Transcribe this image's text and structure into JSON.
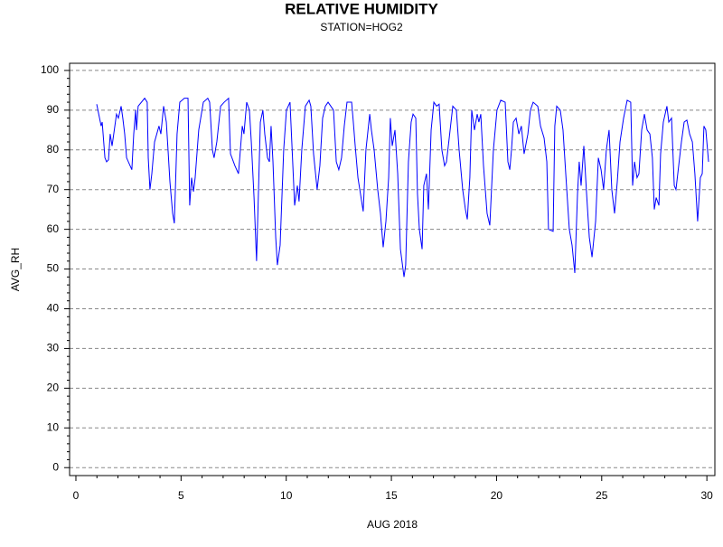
{
  "chart_data": {
    "type": "line",
    "title": "RELATIVE HUMIDITY",
    "subtitle": "STATION=HOG2",
    "x_label": "AUG 2018",
    "y_label": "AVG_RH",
    "color": "#0000ff",
    "grid": true,
    "xlim": [
      -0.3,
      30.38
    ],
    "ylim": [
      -2,
      101.8
    ],
    "xticks": [
      0,
      5,
      10,
      15,
      20,
      25,
      30
    ],
    "yticks": [
      0,
      10,
      20,
      30,
      40,
      50,
      60,
      70,
      80,
      90,
      100
    ],
    "xminorticks": [
      1,
      2,
      3,
      4,
      6,
      7,
      8,
      9,
      11,
      12,
      13,
      14,
      16,
      17,
      18,
      19,
      21,
      22,
      23,
      24,
      26,
      27,
      28,
      29
    ],
    "yminorticks": [
      2,
      4,
      6,
      8,
      12,
      14,
      16,
      18,
      22,
      24,
      26,
      28,
      32,
      34,
      36,
      38,
      42,
      44,
      46,
      48,
      52,
      54,
      56,
      58,
      62,
      64,
      66,
      68,
      72,
      74,
      76,
      78,
      82,
      84,
      86,
      88,
      92,
      94,
      96,
      98
    ],
    "x": [
      0.99,
      1.2,
      1.25,
      1.38,
      1.46,
      1.55,
      1.63,
      1.72,
      1.8,
      1.93,
      2.02,
      2.15,
      2.23,
      2.32,
      2.41,
      2.66,
      2.75,
      2.84,
      2.88,
      2.96,
      3.27,
      3.39,
      3.44,
      3.52,
      3.61,
      3.74,
      3.95,
      4.04,
      4.17,
      4.3,
      4.38,
      4.47,
      4.6,
      4.68,
      4.81,
      4.94,
      5.16,
      5.33,
      5.41,
      5.5,
      5.59,
      5.67,
      5.84,
      6.06,
      6.27,
      6.36,
      6.49,
      6.57,
      6.7,
      6.88,
      7.05,
      7.26,
      7.35,
      7.56,
      7.73,
      7.91,
      7.99,
      8.12,
      8.25,
      8.34,
      8.47,
      8.59,
      8.77,
      8.89,
      8.98,
      9.11,
      9.2,
      9.28,
      9.37,
      9.5,
      9.58,
      9.71,
      9.88,
      10.01,
      10.18,
      10.4,
      10.53,
      10.61,
      10.74,
      10.91,
      11.09,
      11.17,
      11.3,
      11.47,
      11.6,
      11.73,
      11.86,
      11.99,
      12.25,
      12.38,
      12.5,
      12.63,
      12.76,
      12.89,
      13.11,
      13.19,
      13.28,
      13.41,
      13.66,
      13.79,
      13.97,
      14.05,
      14.18,
      14.35,
      14.48,
      14.61,
      14.74,
      14.87,
      14.95,
      15.04,
      15.17,
      15.3,
      15.43,
      15.6,
      15.68,
      15.81,
      15.94,
      16.03,
      16.16,
      16.24,
      16.33,
      16.46,
      16.54,
      16.67,
      16.76,
      16.89,
      17.02,
      17.15,
      17.27,
      17.4,
      17.53,
      17.62,
      17.75,
      17.92,
      18.09,
      18.22,
      18.39,
      18.52,
      18.61,
      18.73,
      18.82,
      18.95,
      19.08,
      19.16,
      19.25,
      19.38,
      19.55,
      19.68,
      19.85,
      20.02,
      20.2,
      20.41,
      20.54,
      20.63,
      20.71,
      20.8,
      20.93,
      21.06,
      21.18,
      21.31,
      21.49,
      21.61,
      21.74,
      21.96,
      22.09,
      22.26,
      22.39,
      22.47,
      22.69,
      22.77,
      22.86,
      23.03,
      23.16,
      23.29,
      23.46,
      23.59,
      23.72,
      23.85,
      23.93,
      24.02,
      24.15,
      24.28,
      24.41,
      24.54,
      24.71,
      24.84,
      24.97,
      25.09,
      25.22,
      25.35,
      25.48,
      25.61,
      25.74,
      25.87,
      26.04,
      26.21,
      26.38,
      26.47,
      26.56,
      26.68,
      26.77,
      26.9,
      27.03,
      27.16,
      27.29,
      27.41,
      27.5,
      27.59,
      27.72,
      27.8,
      27.93,
      28.1,
      28.19,
      28.32,
      28.45,
      28.53,
      28.66,
      28.79,
      28.92,
      29.05,
      29.18,
      29.31,
      29.43,
      29.56,
      29.69,
      29.78,
      29.86,
      29.95,
      30.08
    ],
    "values": [
      91.5,
      86,
      87,
      78,
      77,
      77.5,
      84,
      81,
      84,
      89,
      88,
      91,
      88,
      84,
      78,
      75,
      84,
      90,
      85,
      91,
      93,
      92,
      78,
      70,
      74,
      82,
      86,
      84,
      91,
      87,
      80,
      72,
      64,
      61.5,
      84,
      92,
      93,
      93,
      66,
      73,
      69.5,
      73,
      85,
      92,
      93,
      92,
      80,
      78,
      82,
      91,
      92,
      93,
      79,
      76,
      74,
      86,
      84,
      92,
      90,
      82,
      68,
      52,
      87,
      90,
      84,
      78,
      77,
      86,
      77,
      58,
      51,
      56,
      80,
      90,
      92,
      66,
      71,
      67,
      80,
      91,
      92.5,
      91,
      79,
      70,
      76,
      88,
      91,
      92,
      90,
      77,
      75,
      78,
      86,
      92,
      92,
      87,
      81,
      73,
      64.5,
      80,
      89,
      85,
      80,
      70,
      64,
      55.5,
      62,
      73,
      88,
      81,
      85,
      74,
      55,
      48,
      51,
      77,
      87,
      89,
      88,
      69,
      60,
      55,
      71,
      74,
      65,
      85,
      92,
      91,
      91.5,
      80,
      76,
      77,
      83,
      91,
      90,
      80,
      70,
      65,
      62.5,
      73,
      90,
      85,
      89,
      87,
      89,
      76,
      64,
      61,
      80,
      90,
      92.5,
      92,
      77,
      75,
      80,
      87,
      88,
      84,
      86,
      79,
      84,
      90,
      92,
      91,
      86,
      83,
      77,
      60,
      59.5,
      86,
      91,
      90,
      85,
      74,
      60,
      56,
      49,
      69,
      77,
      71,
      81,
      69,
      58,
      53,
      62,
      78,
      75,
      70,
      80,
      85,
      70,
      64,
      72,
      82,
      88,
      92.5,
      92,
      71,
      77,
      73,
      74,
      85,
      89,
      85,
      84,
      78,
      65,
      68,
      66,
      79,
      87,
      91,
      87,
      88,
      71,
      70,
      76,
      82,
      87,
      87.5,
      84,
      82,
      74,
      62,
      73,
      74,
      86,
      85,
      77
    ]
  }
}
